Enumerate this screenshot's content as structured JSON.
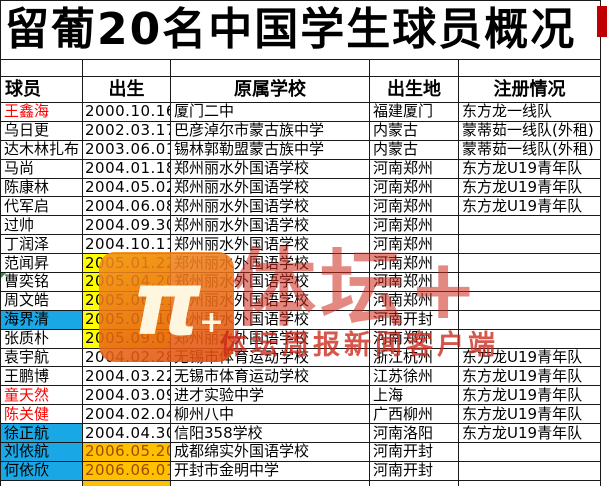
{
  "title": "留葡20名中国学生球员概况",
  "table": {
    "headers": [
      "球员",
      "出生",
      "原属学校",
      "出生地",
      "注册情况"
    ],
    "rows": [
      {
        "name": "王鑫海",
        "name_style": "red",
        "birth": "2000.10.16",
        "birth_style": "",
        "school": "厦门二中",
        "birthplace": "福建厦门",
        "registration": "东方龙一线队"
      },
      {
        "name": "乌日更",
        "name_style": "",
        "birth": "2002.03.17",
        "birth_style": "",
        "school": "巴彦淖尔市蒙古族中学",
        "birthplace": "内蒙古",
        "registration": "蒙蒂茹一线队(外租)"
      },
      {
        "name": "达木林扎布",
        "name_style": "",
        "birth": "2003.06.01",
        "birth_style": "",
        "school": "锡林郭勒盟蒙古族中学",
        "birthplace": "内蒙古",
        "registration": "蒙蒂茹一线队(外租)"
      },
      {
        "name": "马尚",
        "name_style": "",
        "birth": "2004.01.18",
        "birth_style": "",
        "school": "郑州丽水外国语学校",
        "birthplace": "河南郑州",
        "registration": "东方龙U19青年队"
      },
      {
        "name": "陈康林",
        "name_style": "",
        "birth": "2004.05.02",
        "birth_style": "",
        "school": "郑州丽水外国语学校",
        "birthplace": "河南郑州",
        "registration": "东方龙U19青年队"
      },
      {
        "name": "代军启",
        "name_style": "",
        "birth": "2004.06.08",
        "birth_style": "",
        "school": "郑州丽水外国语学校",
        "birthplace": "河南郑州",
        "registration": "东方龙U19青年队"
      },
      {
        "name": "过帅",
        "name_style": "",
        "birth": "2004.09.30",
        "birth_style": "",
        "school": "郑州丽水外国语学校",
        "birthplace": "河南郑州",
        "registration": ""
      },
      {
        "name": "丁润泽",
        "name_style": "",
        "birth": "2004.10.11",
        "birth_style": "",
        "school": "郑州丽水外国语学校",
        "birthplace": "河南郑州",
        "registration": ""
      },
      {
        "name": "范闻昇",
        "name_style": "",
        "birth": "2005.01.22",
        "birth_style": "yellow",
        "school": "郑州丽水外国语学校",
        "birthplace": "河南郑州",
        "registration": ""
      },
      {
        "name": "曹奕铭",
        "name_style": "",
        "birth": "2005.04.20",
        "birth_style": "yellow",
        "school": "郑州丽水外国语学校",
        "birthplace": "河南郑州",
        "registration": "",
        "marker": true
      },
      {
        "name": "周文皓",
        "name_style": "",
        "birth": "2005.06.21",
        "birth_style": "yellow",
        "school": "郑州丽水外国语学校",
        "birthplace": "河南郑州",
        "registration": ""
      },
      {
        "name": "海界清",
        "name_style": "bg-blue",
        "birth": "2005.08.10",
        "birth_style": "yellow",
        "school": "郑州丽水外国语学校",
        "birthplace": "河南开封",
        "registration": ""
      },
      {
        "name": "张质朴",
        "name_style": "",
        "birth": "2005.09.01",
        "birth_style": "yellow",
        "school": "郑州丽水外国语学校",
        "birthplace": "河南郑州",
        "registration": ""
      },
      {
        "name": "袁宇航",
        "name_style": "",
        "birth": "2004.02.28",
        "birth_style": "",
        "school": "无锡市体育运动学校",
        "birthplace": "浙江杭州",
        "registration": "东方龙U19青年队"
      },
      {
        "name": "王鹏博",
        "name_style": "",
        "birth": "2004.03.22",
        "birth_style": "",
        "school": "无锡市体育运动学校",
        "birthplace": "江苏徐州",
        "registration": "东方龙U19青年队"
      },
      {
        "name": "童天然",
        "name_style": "red",
        "birth": "2004.03.09",
        "birth_style": "",
        "school": "进才实验中学",
        "birthplace": "上海",
        "registration": "东方龙U19青年队"
      },
      {
        "name": "陈关健",
        "name_style": "red",
        "birth": "2004.02.04",
        "birth_style": "",
        "school": "柳州八中",
        "birthplace": "广西柳州",
        "registration": "东方龙U19青年队"
      },
      {
        "name": "徐正航",
        "name_style": "bg-blue",
        "birth": "2004.04.30",
        "birth_style": "",
        "school": "信阳358学校",
        "birthplace": "河南洛阳",
        "registration": "东方龙U19青年队"
      },
      {
        "name": "刘依航",
        "name_style": "bg-blue",
        "birth": "2006.05.20",
        "birth_style": "orange",
        "school": "成都绵实外国语学校",
        "birthplace": "河南开封",
        "registration": ""
      },
      {
        "name": "何依欣",
        "name_style": "bg-blue",
        "birth": "2006.06.01",
        "birth_style": "orange",
        "school": "开封市金明中学",
        "birthplace": "河南开封",
        "registration": ""
      }
    ]
  },
  "watermark": {
    "icon": "titan-plus-app-icon",
    "icon_glyph": "π",
    "icon_plus": "+",
    "big_text": "体坛+",
    "small_text": "体坛周报新闻客户端",
    "red": "#CD2819",
    "orange": "#ED6A1A"
  },
  "colors": {
    "highlight_blue": "#19A7E5",
    "highlight_yellow": "#FFFF00",
    "highlight_orange": "#FFC000",
    "name_red": "#FF0000",
    "grid_line": "#1A1A1A"
  }
}
